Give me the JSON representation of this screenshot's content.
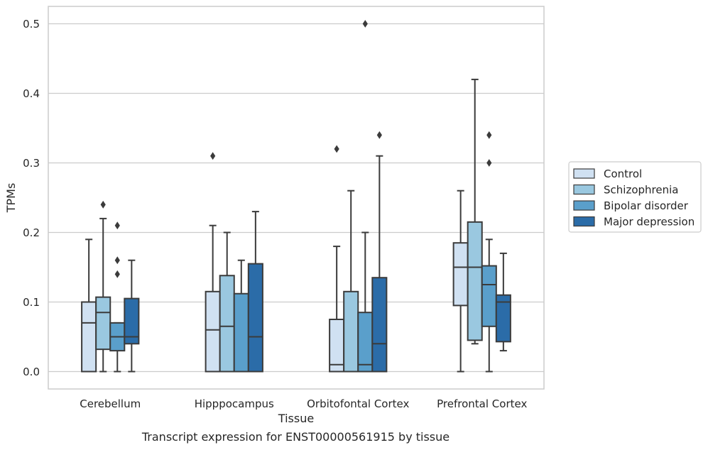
{
  "caption": "Transcript expression for ENST00000561915 by tissue",
  "chart_data": {
    "type": "box",
    "xlabel": "Tissue",
    "ylabel": "TPMs",
    "ylim": [
      -0.025,
      0.525
    ],
    "yticks": [
      0.0,
      0.1,
      0.2,
      0.3,
      0.4,
      0.5
    ],
    "ytick_labels": [
      "0.0",
      "0.1",
      "0.2",
      "0.3",
      "0.4",
      "0.5"
    ],
    "grid": true,
    "legend_position": "right",
    "categories": [
      "Cerebellum",
      "Hipppocampus",
      "Orbitofontal Cortex",
      "Prefrontal Cortex"
    ],
    "series": [
      {
        "name": "Control",
        "color": "#d0e1f2",
        "boxes": [
          {
            "whislo": 0.0,
            "q1": 0.0,
            "med": 0.07,
            "q3": 0.1,
            "whishi": 0.19,
            "fliers": []
          },
          {
            "whislo": 0.0,
            "q1": 0.0,
            "med": 0.06,
            "q3": 0.115,
            "whishi": 0.21,
            "fliers": [
              0.31
            ]
          },
          {
            "whislo": 0.0,
            "q1": 0.0,
            "med": 0.01,
            "q3": 0.075,
            "whishi": 0.18,
            "fliers": [
              0.32
            ]
          },
          {
            "whislo": 0.0,
            "q1": 0.095,
            "med": 0.15,
            "q3": 0.185,
            "whishi": 0.26,
            "fliers": []
          }
        ]
      },
      {
        "name": "Schizophrenia",
        "color": "#9ac8e0",
        "boxes": [
          {
            "whislo": 0.0,
            "q1": 0.032,
            "med": 0.085,
            "q3": 0.107,
            "whishi": 0.22,
            "fliers": [
              0.24
            ]
          },
          {
            "whislo": 0.0,
            "q1": 0.0,
            "med": 0.065,
            "q3": 0.138,
            "whishi": 0.2,
            "fliers": []
          },
          {
            "whislo": 0.0,
            "q1": 0.0,
            "med": 0.0,
            "q3": 0.115,
            "whishi": 0.26,
            "fliers": []
          },
          {
            "whislo": 0.04,
            "q1": 0.045,
            "med": 0.15,
            "q3": 0.215,
            "whishi": 0.42,
            "fliers": []
          }
        ]
      },
      {
        "name": "Bipolar disorder",
        "color": "#5a9fcb",
        "boxes": [
          {
            "whislo": 0.0,
            "q1": 0.03,
            "med": 0.05,
            "q3": 0.07,
            "whishi": 0.07,
            "fliers": [
              0.14,
              0.16,
              0.21
            ]
          },
          {
            "whislo": 0.0,
            "q1": 0.0,
            "med": 0.0,
            "q3": 0.112,
            "whishi": 0.16,
            "fliers": []
          },
          {
            "whislo": 0.0,
            "q1": 0.0,
            "med": 0.01,
            "q3": 0.085,
            "whishi": 0.2,
            "fliers": [
              0.5
            ]
          },
          {
            "whislo": 0.0,
            "q1": 0.065,
            "med": 0.125,
            "q3": 0.152,
            "whishi": 0.19,
            "fliers": [
              0.3,
              0.34
            ]
          }
        ]
      },
      {
        "name": "Major depression",
        "color": "#2b6ca8",
        "boxes": [
          {
            "whislo": 0.0,
            "q1": 0.04,
            "med": 0.05,
            "q3": 0.105,
            "whishi": 0.16,
            "fliers": []
          },
          {
            "whislo": 0.0,
            "q1": 0.0,
            "med": 0.05,
            "q3": 0.155,
            "whishi": 0.23,
            "fliers": []
          },
          {
            "whislo": 0.0,
            "q1": 0.0,
            "med": 0.04,
            "q3": 0.135,
            "whishi": 0.31,
            "fliers": [
              0.34
            ]
          },
          {
            "whislo": 0.03,
            "q1": 0.043,
            "med": 0.1,
            "q3": 0.11,
            "whishi": 0.17,
            "fliers": []
          }
        ]
      }
    ]
  }
}
